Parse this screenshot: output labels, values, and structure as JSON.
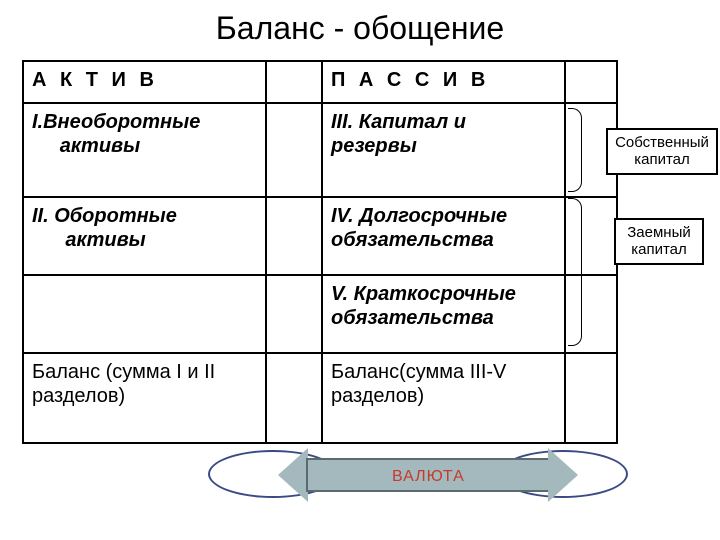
{
  "title": "Баланс - обощение",
  "table": {
    "border_color": "#000000",
    "background": "#ffffff",
    "headers": {
      "left": "А К Т И В",
      "right": "П А С С И В"
    },
    "rows": {
      "r1": {
        "left": "I.Внеоборотные\n     активы",
        "right": "III. Капитал и резервы"
      },
      "r2": {
        "left": "II. Оборотные\n      активы",
        "right": "IV. Долгосрочные обязательства"
      },
      "r3": {
        "left": "",
        "right": "V. Краткосрочные обязательства"
      },
      "r4": {
        "left": "Баланс (сумма I и II разделов)",
        "right": "Баланс(сумма III-V разделов)"
      }
    }
  },
  "annotations": {
    "own_capital": "Собственный\nкапитал",
    "borrowed_capital": "Заемный\nкапитал"
  },
  "overlay": {
    "currency_label": "ВАЛЮТА",
    "arrow_fill": "#a4b9bd",
    "arrow_border": "#5a6a6e",
    "oval_border": "#3a4a85",
    "currency_color": "#c63a2a"
  }
}
